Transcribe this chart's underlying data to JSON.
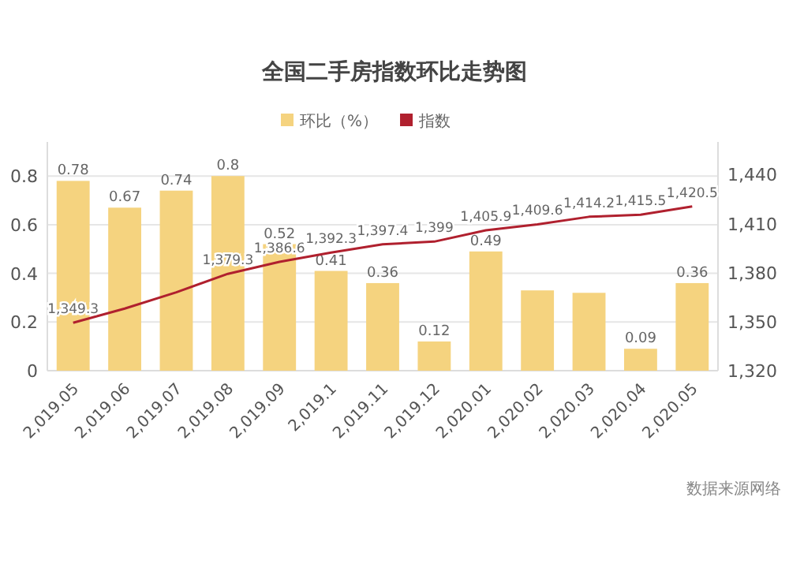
{
  "chart_data": {
    "type": "bar",
    "title": "全国二手房指数环比走势图",
    "categories": [
      "2,019.05",
      "2,019.06",
      "2,019.07",
      "2,019.08",
      "2,019.09",
      "2,019.1",
      "2,019.11",
      "2,019.12",
      "2,020.01",
      "2,020.02",
      "2,020.03",
      "2,020.04",
      "2,020.05"
    ],
    "series": [
      {
        "name": "环比（%）",
        "color": "#f5d37f",
        "values": [
          0.78,
          0.67,
          0.74,
          0.8,
          0.52,
          0.41,
          0.36,
          0.12,
          0.49,
          0.33,
          0.32,
          0.09,
          0.36
        ],
        "value_labels": [
          "0.78",
          "0.67",
          "0.74",
          "0.8",
          "0.52",
          "0.41",
          "0.36",
          "0.12",
          "0.49",
          null,
          null,
          "0.09",
          "0.36"
        ]
      },
      {
        "name": "指数",
        "type": "line",
        "axis": "y2",
        "color": "#b0202e",
        "values": [
          1349.3,
          1358,
          1368,
          1379.3,
          1386.6,
          1392.3,
          1397.4,
          1399,
          1405.9,
          1409.6,
          1414.2,
          1415.5,
          1420.5
        ],
        "value_labels": [
          "1,349.3",
          null,
          null,
          "1,379.3",
          "1,386.6",
          "1,392.3",
          "1,397.4",
          "1,399",
          "1,405.9",
          "1,409.6",
          "1,414.2",
          "1,415.5",
          "1,420.5"
        ]
      }
    ],
    "ylim": [
      0,
      0.94
    ],
    "yticks": [
      0,
      0.2,
      0.4,
      0.6,
      0.8
    ],
    "y2lim": [
      1320,
      1460
    ],
    "y2ticks": [
      {
        "value": 1320,
        "label": "1,320"
      },
      {
        "value": 1350,
        "label": "1,350"
      },
      {
        "value": 1380,
        "label": "1,380"
      },
      {
        "value": 1410,
        "label": "1,410"
      },
      {
        "value": 1440,
        "label": "1,440"
      }
    ],
    "grid": "y",
    "legend": "top",
    "annotations": [
      "数据来源网络"
    ]
  }
}
